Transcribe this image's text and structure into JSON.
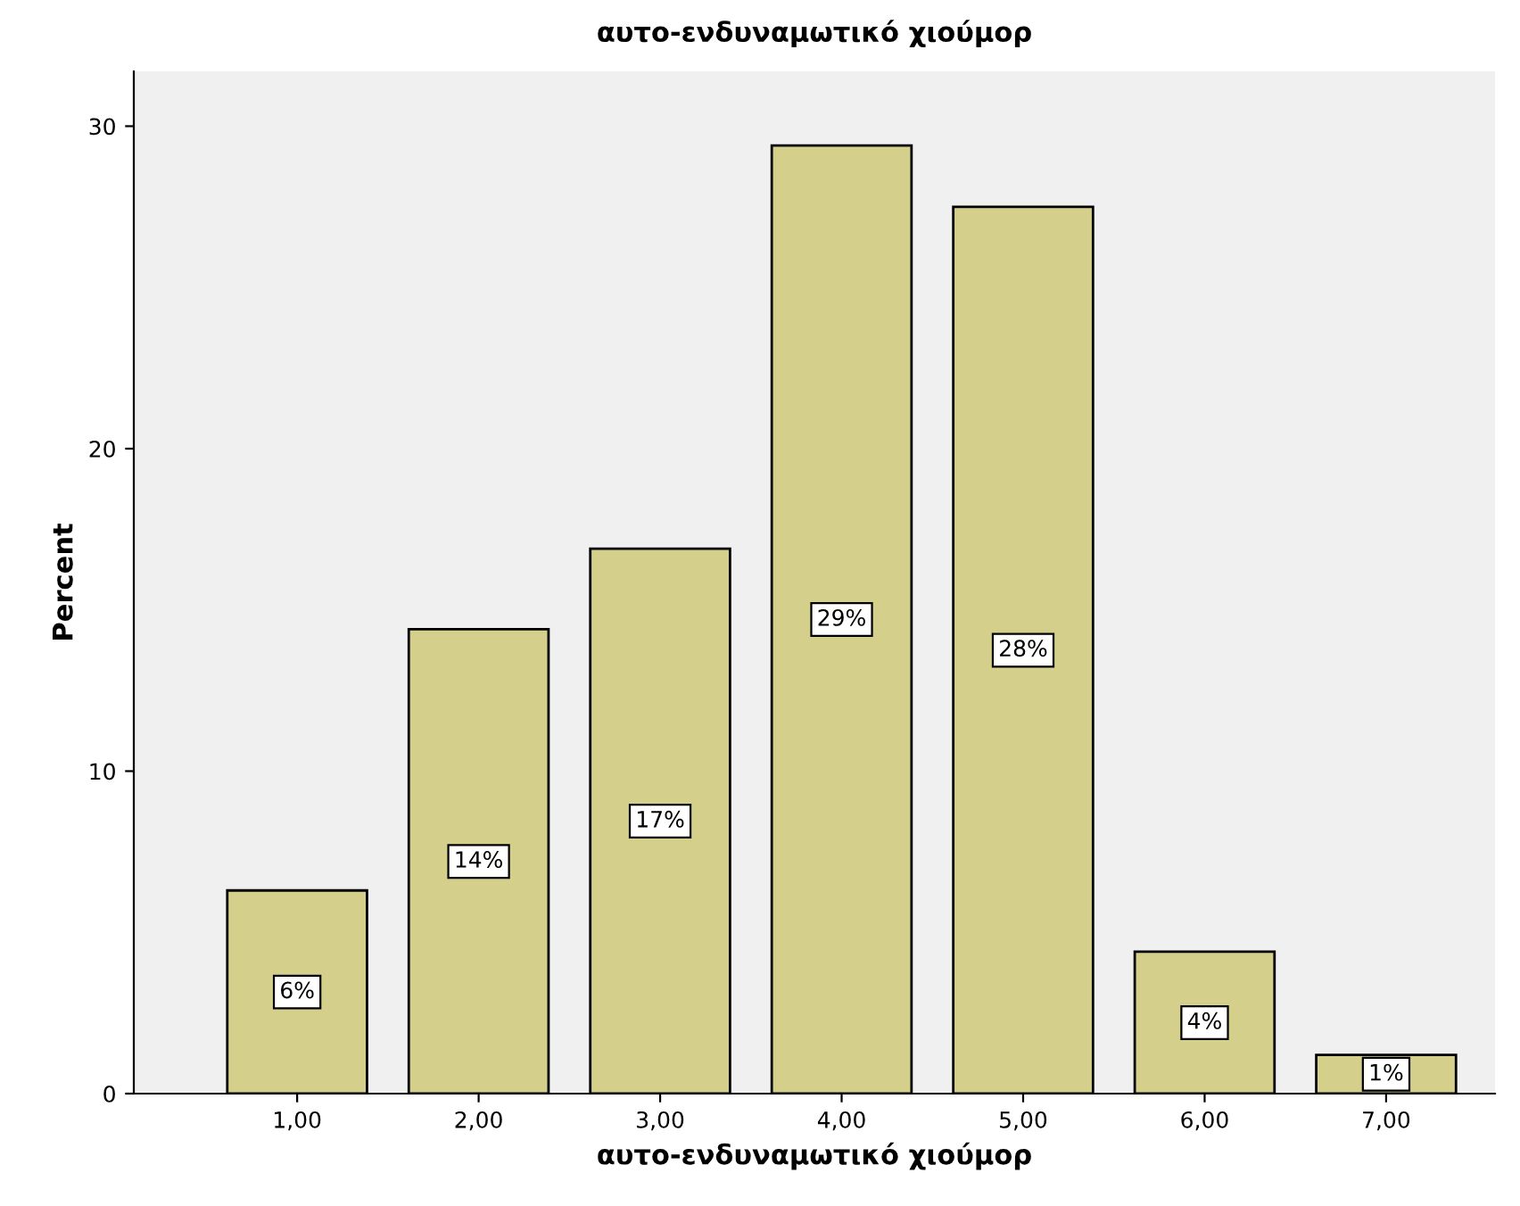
{
  "chart_data": {
    "type": "bar",
    "title": "αυτο-ενδυναμωτικό χιούμορ",
    "xlabel": "αυτο-ενδυναμωτικό χιούμορ",
    "ylabel": "Percent",
    "categories": [
      "1,00",
      "2,00",
      "3,00",
      "4,00",
      "5,00",
      "6,00",
      "7,00"
    ],
    "values": [
      6.3,
      14.4,
      16.9,
      29.4,
      27.5,
      4.4,
      1.2
    ],
    "value_labels": [
      "6%",
      "14%",
      "17%",
      "29%",
      "28%",
      "4%",
      "1%"
    ],
    "color": "#d4d08c",
    "ylim": [
      0,
      31.7
    ],
    "yticks": [
      0,
      10,
      20,
      30
    ],
    "grid": false,
    "legend": false
  }
}
